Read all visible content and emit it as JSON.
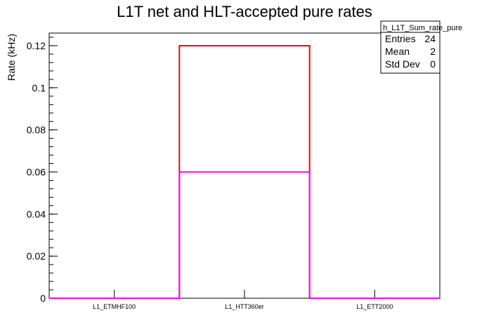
{
  "chart_data": {
    "type": "bar",
    "title": "L1T net and HLT-accepted pure rates",
    "ylabel": "Rate (kHz)",
    "xlabel": "",
    "categories": [
      "L1_ETMHF100",
      "L1_HTT360er",
      "L1_ETT2000"
    ],
    "series": [
      {
        "values": [
          0,
          0.12,
          0
        ],
        "color": "#ff0000"
      },
      {
        "values": [
          0,
          0.06,
          0
        ],
        "color": "#ff00ff"
      }
    ],
    "ylim": [
      0,
      0.126
    ],
    "yticks": [
      0,
      0.02,
      0.04,
      0.06,
      0.08,
      0.1,
      0.12
    ],
    "ytick_labels": [
      "0",
      "0.02",
      "0.04",
      "0.06",
      "0.08",
      "0.1",
      "0.12"
    ],
    "grid": false,
    "stats_box": {
      "name": "h_L1T_Sum_rate_pure",
      "rows": [
        {
          "label": "Entries",
          "value": "24"
        },
        {
          "label": "Mean",
          "value": "2"
        },
        {
          "label": "Std Dev",
          "value": "0"
        }
      ],
      "placement": "top-right"
    }
  }
}
